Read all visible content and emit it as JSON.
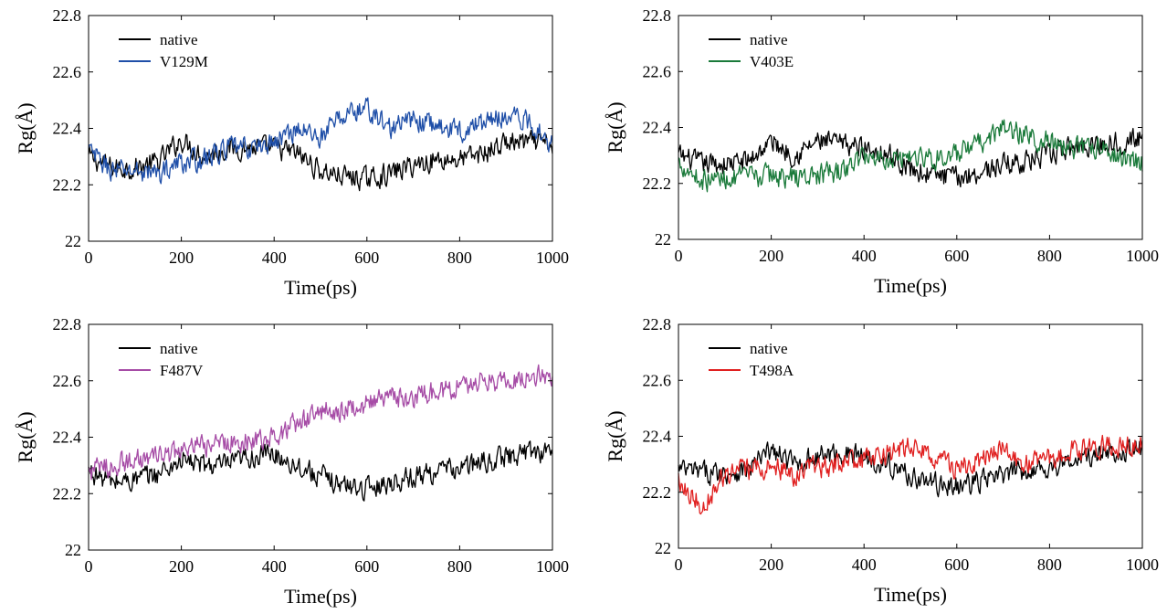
{
  "chart_data": [
    {
      "type": "line",
      "xlabel": "Time(ps)",
      "ylabel": "Rg(Å)",
      "xlim": [
        0,
        1000
      ],
      "ylim": [
        22,
        22.8
      ],
      "xticks": [
        "0",
        "200",
        "400",
        "600",
        "800",
        "1000"
      ],
      "yticks": [
        "22",
        "22.2",
        "22.4",
        "22.6",
        "22.8"
      ],
      "legend_position": "top-left",
      "grid": false,
      "series": [
        {
          "name": "native",
          "color": "#000000",
          "x": [
            0,
            50,
            100,
            150,
            200,
            250,
            300,
            350,
            400,
            450,
            500,
            550,
            600,
            650,
            700,
            750,
            800,
            850,
            900,
            950,
            1000
          ],
          "y": [
            22.3,
            22.26,
            22.26,
            22.28,
            22.36,
            22.3,
            22.33,
            22.33,
            22.33,
            22.31,
            22.25,
            22.23,
            22.22,
            22.24,
            22.27,
            22.29,
            22.29,
            22.31,
            22.35,
            22.35,
            22.34
          ]
        },
        {
          "name": "V129M",
          "color": "#1f4fa8",
          "x": [
            0,
            50,
            100,
            150,
            200,
            250,
            300,
            350,
            400,
            450,
            500,
            550,
            600,
            650,
            700,
            750,
            800,
            850,
            900,
            950,
            1000
          ],
          "y": [
            22.32,
            22.25,
            22.25,
            22.24,
            22.28,
            22.29,
            22.33,
            22.33,
            22.35,
            22.4,
            22.37,
            22.45,
            22.47,
            22.4,
            22.43,
            22.41,
            22.39,
            22.42,
            22.45,
            22.42,
            22.35
          ]
        }
      ]
    },
    {
      "type": "line",
      "xlabel": "Time(ps)",
      "ylabel": "Rg(Å)",
      "xlim": [
        0,
        1000
      ],
      "ylim": [
        22,
        22.8
      ],
      "xticks": [
        "0",
        "200",
        "400",
        "600",
        "800",
        "1000"
      ],
      "yticks": [
        "22",
        "22.2",
        "22.4",
        "22.6",
        "22.8"
      ],
      "legend_position": "top-left",
      "grid": false,
      "series": [
        {
          "name": "native",
          "color": "#000000",
          "x": [
            0,
            50,
            100,
            150,
            200,
            250,
            300,
            350,
            400,
            450,
            500,
            550,
            600,
            650,
            700,
            750,
            800,
            850,
            900,
            950,
            1000
          ],
          "y": [
            22.3,
            22.27,
            22.27,
            22.28,
            22.35,
            22.3,
            22.35,
            22.34,
            22.33,
            22.31,
            22.25,
            22.23,
            22.22,
            22.24,
            22.27,
            22.28,
            22.3,
            22.33,
            22.34,
            22.35,
            22.36
          ]
        },
        {
          "name": "V403E",
          "color": "#1a7a3a",
          "x": [
            0,
            50,
            100,
            150,
            200,
            250,
            300,
            350,
            400,
            450,
            500,
            550,
            600,
            650,
            700,
            750,
            800,
            850,
            900,
            950,
            1000
          ],
          "y": [
            22.28,
            22.21,
            22.22,
            22.22,
            22.23,
            22.22,
            22.23,
            22.24,
            22.3,
            22.29,
            22.3,
            22.29,
            22.3,
            22.34,
            22.4,
            22.37,
            22.35,
            22.32,
            22.33,
            22.3,
            22.27
          ]
        }
      ]
    },
    {
      "type": "line",
      "xlabel": "Time(ps)",
      "ylabel": "Rg(Å)",
      "xlim": [
        0,
        1000
      ],
      "ylim": [
        22,
        22.8
      ],
      "xticks": [
        "0",
        "200",
        "400",
        "600",
        "800",
        "1000"
      ],
      "yticks": [
        "22",
        "22.2",
        "22.4",
        "22.6",
        "22.8"
      ],
      "legend_position": "top-left",
      "grid": false,
      "series": [
        {
          "name": "native",
          "color": "#000000",
          "x": [
            0,
            50,
            100,
            150,
            200,
            250,
            300,
            350,
            400,
            450,
            500,
            550,
            600,
            650,
            700,
            750,
            800,
            850,
            900,
            950,
            1000
          ],
          "y": [
            22.28,
            22.24,
            22.25,
            22.27,
            22.32,
            22.3,
            22.3,
            22.33,
            22.34,
            22.3,
            22.26,
            22.23,
            22.22,
            22.24,
            22.26,
            22.28,
            22.29,
            22.31,
            22.33,
            22.35,
            22.35
          ]
        },
        {
          "name": "F487V",
          "color": "#a64ca6",
          "x": [
            0,
            50,
            100,
            150,
            200,
            250,
            300,
            350,
            400,
            450,
            500,
            550,
            600,
            650,
            700,
            750,
            800,
            850,
            900,
            950,
            1000
          ],
          "y": [
            22.28,
            22.3,
            22.32,
            22.33,
            22.35,
            22.37,
            22.38,
            22.39,
            22.4,
            22.45,
            22.49,
            22.5,
            22.52,
            22.54,
            22.54,
            22.56,
            22.58,
            22.6,
            22.6,
            22.62,
            22.62
          ]
        }
      ]
    },
    {
      "type": "line",
      "xlabel": "Time(ps)",
      "ylabel": "Rg(Å)",
      "xlim": [
        0,
        1000
      ],
      "ylim": [
        22,
        22.8
      ],
      "xticks": [
        "0",
        "200",
        "400",
        "600",
        "800",
        "1000"
      ],
      "yticks": [
        "22",
        "22.2",
        "22.4",
        "22.6",
        "22.8"
      ],
      "legend_position": "top-left",
      "grid": false,
      "series": [
        {
          "name": "native",
          "color": "#000000",
          "x": [
            0,
            50,
            100,
            150,
            200,
            250,
            300,
            350,
            400,
            450,
            500,
            550,
            600,
            650,
            700,
            750,
            800,
            850,
            900,
            950,
            1000
          ],
          "y": [
            22.28,
            22.27,
            22.27,
            22.28,
            22.35,
            22.3,
            22.33,
            22.34,
            22.33,
            22.3,
            22.26,
            22.23,
            22.22,
            22.24,
            22.26,
            22.28,
            22.29,
            22.31,
            22.33,
            22.35,
            22.35
          ]
        },
        {
          "name": "T498A",
          "color": "#e02020",
          "x": [
            0,
            50,
            100,
            150,
            200,
            250,
            300,
            350,
            400,
            450,
            500,
            550,
            600,
            650,
            700,
            750,
            800,
            850,
            900,
            950,
            1000
          ],
          "y": [
            22.25,
            22.15,
            22.26,
            22.28,
            22.29,
            22.26,
            22.29,
            22.3,
            22.31,
            22.34,
            22.36,
            22.33,
            22.28,
            22.31,
            22.35,
            22.3,
            22.32,
            22.35,
            22.36,
            22.37,
            22.38
          ]
        }
      ]
    }
  ]
}
